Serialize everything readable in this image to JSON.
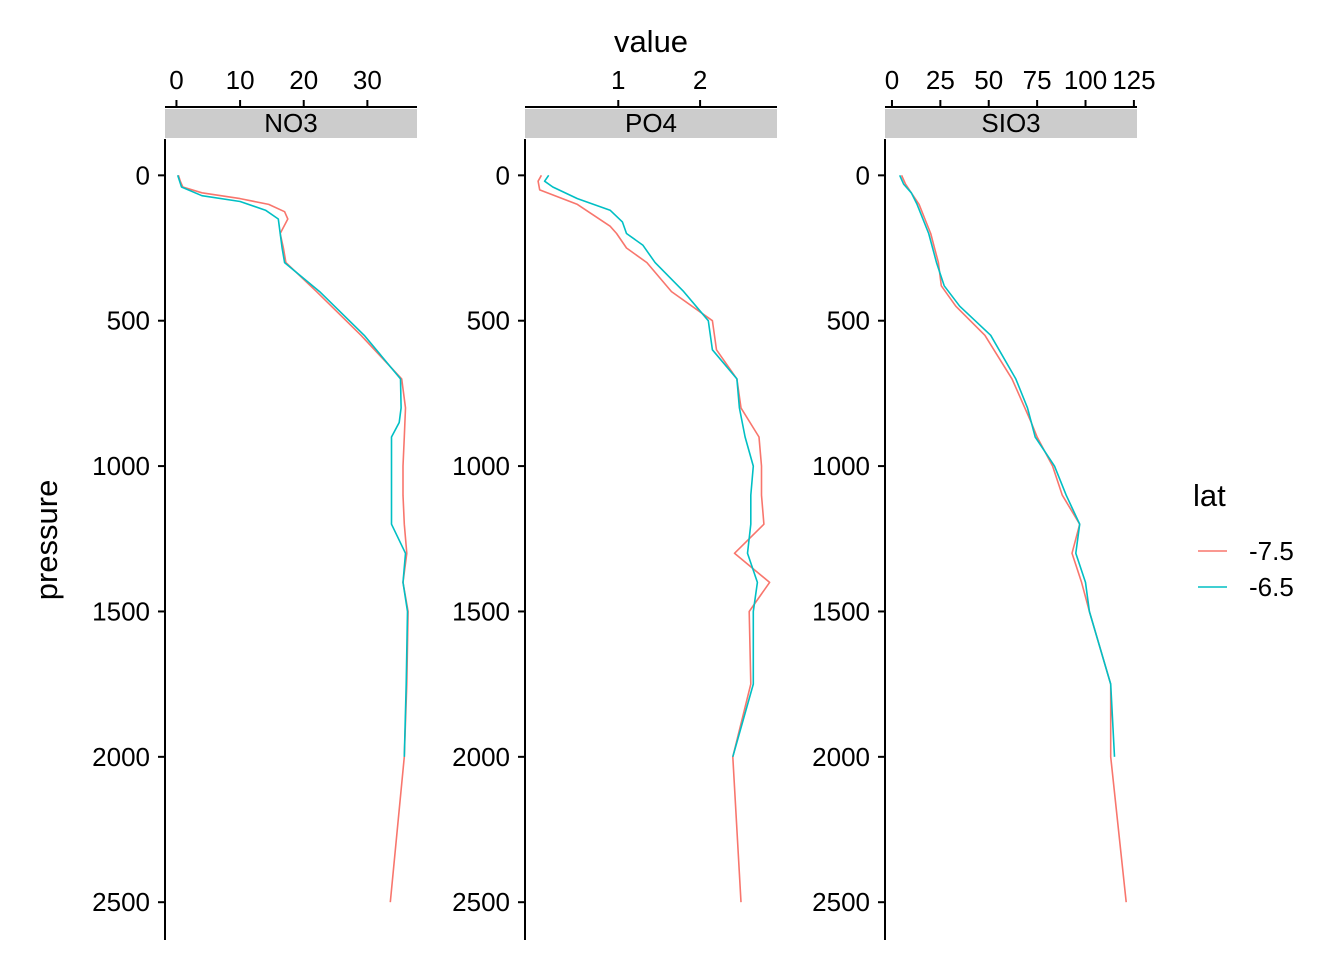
{
  "colors": {
    "lat_-7.5": "#F8766D",
    "lat_-6.5": "#00BFC4",
    "strip": "#CCCCCC"
  },
  "chart_data": {
    "type": "line",
    "xlabel": "value",
    "ylabel": "pressure",
    "y_reversed": true,
    "ylim": [
      -125,
      2630
    ],
    "yticks": [
      0,
      500,
      1000,
      1500,
      2000,
      2500
    ],
    "grid": false,
    "legend": {
      "title": "lat",
      "position": "right",
      "entries": [
        "-7.5",
        "-6.5"
      ]
    },
    "panels": [
      {
        "label": "NO3",
        "xlim": [
          -1.8,
          37.8
        ],
        "xticks": [
          0,
          10,
          20,
          30
        ],
        "series": [
          {
            "name": "-7.5",
            "points": [
              [
                0.3,
                0
              ],
              [
                0.6,
                20
              ],
              [
                1.0,
                40
              ],
              [
                4.0,
                60
              ],
              [
                10.0,
                80
              ],
              [
                14.5,
                100
              ],
              [
                17.0,
                125
              ],
              [
                17.5,
                150
              ],
              [
                16.3,
                200
              ],
              [
                16.8,
                250
              ],
              [
                17.2,
                300
              ],
              [
                22.0,
                400
              ],
              [
                29.0,
                550
              ],
              [
                35.4,
                700
              ],
              [
                36.0,
                800
              ],
              [
                35.8,
                900
              ],
              [
                35.6,
                1000
              ],
              [
                35.6,
                1100
              ],
              [
                35.8,
                1200
              ],
              [
                36.2,
                1300
              ],
              [
                35.6,
                1400
              ],
              [
                36.4,
                1500
              ],
              [
                36.2,
                1750
              ],
              [
                35.8,
                2000
              ],
              [
                33.6,
                2500
              ]
            ]
          },
          {
            "name": "-6.5",
            "points": [
              [
                0.2,
                0
              ],
              [
                0.8,
                40
              ],
              [
                4.0,
                70
              ],
              [
                10.0,
                90
              ],
              [
                14.0,
                120
              ],
              [
                16.0,
                150
              ],
              [
                16.3,
                200
              ],
              [
                16.6,
                250
              ],
              [
                17.0,
                300
              ],
              [
                22.5,
                400
              ],
              [
                29.5,
                550
              ],
              [
                35.2,
                700
              ],
              [
                35.3,
                800
              ],
              [
                35.0,
                850
              ],
              [
                33.8,
                900
              ],
              [
                33.8,
                1000
              ],
              [
                33.8,
                1100
              ],
              [
                33.8,
                1200
              ],
              [
                36.0,
                1300
              ],
              [
                35.6,
                1400
              ],
              [
                36.3,
                1500
              ],
              [
                36.1,
                1750
              ],
              [
                35.8,
                2000
              ]
            ]
          }
        ]
      },
      {
        "label": "PO4",
        "xlim": [
          -0.14,
          2.94
        ],
        "xticks": [
          1,
          2
        ],
        "tick_labels": [
          "1",
          "2"
        ],
        "series": [
          {
            "name": "-7.5",
            "points": [
              [
                0.06,
                0
              ],
              [
                0.02,
                20
              ],
              [
                0.04,
                50
              ],
              [
                0.5,
                100
              ],
              [
                0.9,
                175
              ],
              [
                0.98,
                200
              ],
              [
                1.1,
                250
              ],
              [
                1.35,
                300
              ],
              [
                1.65,
                400
              ],
              [
                2.15,
                500
              ],
              [
                2.2,
                600
              ],
              [
                2.45,
                700
              ],
              [
                2.5,
                800
              ],
              [
                2.72,
                900
              ],
              [
                2.75,
                1000
              ],
              [
                2.75,
                1100
              ],
              [
                2.78,
                1200
              ],
              [
                2.42,
                1300
              ],
              [
                2.85,
                1400
              ],
              [
                2.6,
                1500
              ],
              [
                2.62,
                1750
              ],
              [
                2.4,
                2000
              ],
              [
                2.5,
                2500
              ]
            ]
          },
          {
            "name": "-6.5",
            "points": [
              [
                0.15,
                0
              ],
              [
                0.1,
                20
              ],
              [
                0.2,
                40
              ],
              [
                0.5,
                80
              ],
              [
                0.9,
                120
              ],
              [
                1.05,
                160
              ],
              [
                1.1,
                200
              ],
              [
                1.3,
                240
              ],
              [
                1.45,
                300
              ],
              [
                1.8,
                400
              ],
              [
                2.1,
                500
              ],
              [
                2.15,
                600
              ],
              [
                2.45,
                700
              ],
              [
                2.48,
                800
              ],
              [
                2.55,
                900
              ],
              [
                2.65,
                1000
              ],
              [
                2.62,
                1100
              ],
              [
                2.62,
                1200
              ],
              [
                2.58,
                1300
              ],
              [
                2.7,
                1400
              ],
              [
                2.65,
                1500
              ],
              [
                2.65,
                1750
              ],
              [
                2.4,
                2000
              ]
            ]
          }
        ]
      },
      {
        "label": "SIO3",
        "xlim": [
          -3.6,
          126.6
        ],
        "xticks": [
          0,
          25,
          50,
          75,
          100,
          125
        ],
        "tick_labels": [
          "0",
          "25",
          "50",
          "75",
          "100",
          "125"
        ],
        "series": [
          {
            "name": "-7.5",
            "points": [
              [
                5.0,
                0
              ],
              [
                7.0,
                30
              ],
              [
                10.0,
                60
              ],
              [
                14.0,
                100
              ],
              [
                17.0,
                150
              ],
              [
                20.0,
                200
              ],
              [
                22.0,
                250
              ],
              [
                24.0,
                300
              ],
              [
                25.5,
                380
              ],
              [
                33.0,
                450
              ],
              [
                48.0,
                550
              ],
              [
                62.0,
                700
              ],
              [
                72.0,
                850
              ],
              [
                75.0,
                900
              ],
              [
                83.0,
                1000
              ],
              [
                88.0,
                1100
              ],
              [
                97.0,
                1200
              ],
              [
                93.0,
                1300
              ],
              [
                98.0,
                1400
              ],
              [
                102.0,
                1500
              ],
              [
                113.0,
                1750
              ],
              [
                113.0,
                2000
              ],
              [
                121.0,
                2500
              ]
            ]
          },
          {
            "name": "-6.5",
            "points": [
              [
                4.0,
                0
              ],
              [
                6.0,
                30
              ],
              [
                10.0,
                60
              ],
              [
                13.0,
                100
              ],
              [
                16.0,
                150
              ],
              [
                19.0,
                200
              ],
              [
                21.0,
                250
              ],
              [
                23.0,
                300
              ],
              [
                27.0,
                380
              ],
              [
                35.0,
                450
              ],
              [
                51.0,
                550
              ],
              [
                64.0,
                700
              ],
              [
                70.0,
                800
              ],
              [
                74.0,
                900
              ],
              [
                84.0,
                1000
              ],
              [
                90.0,
                1100
              ],
              [
                97.0,
                1200
              ],
              [
                95.0,
                1300
              ],
              [
                100.0,
                1400
              ],
              [
                102.0,
                1500
              ],
              [
                113.0,
                1750
              ],
              [
                115.0,
                2000
              ]
            ]
          }
        ]
      }
    ]
  }
}
